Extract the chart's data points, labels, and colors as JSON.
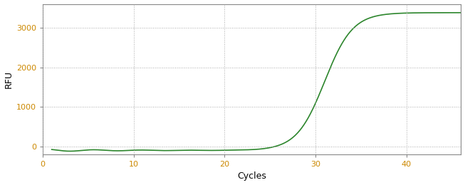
{
  "title": "",
  "xlabel": "Cycles",
  "ylabel": "RFU",
  "line_color": "#2d862d",
  "line_width": 1.2,
  "background_color": "#ffffff",
  "grid_color": "#aaaaaa",
  "grid_linestyle": ":",
  "xlim": [
    0,
    46
  ],
  "ylim": [
    -200,
    3600
  ],
  "xticks": [
    0,
    10,
    20,
    30,
    40
  ],
  "yticks": [
    0,
    1000,
    2000,
    3000
  ],
  "tick_label_color": "#cc8800",
  "axis_label_color": "#000000",
  "sigmoid_L": 3480,
  "sigmoid_k": 0.65,
  "sigmoid_x0": 31.0,
  "baseline_level": -100,
  "x_start": 1,
  "x_end": 46,
  "num_points": 1000
}
